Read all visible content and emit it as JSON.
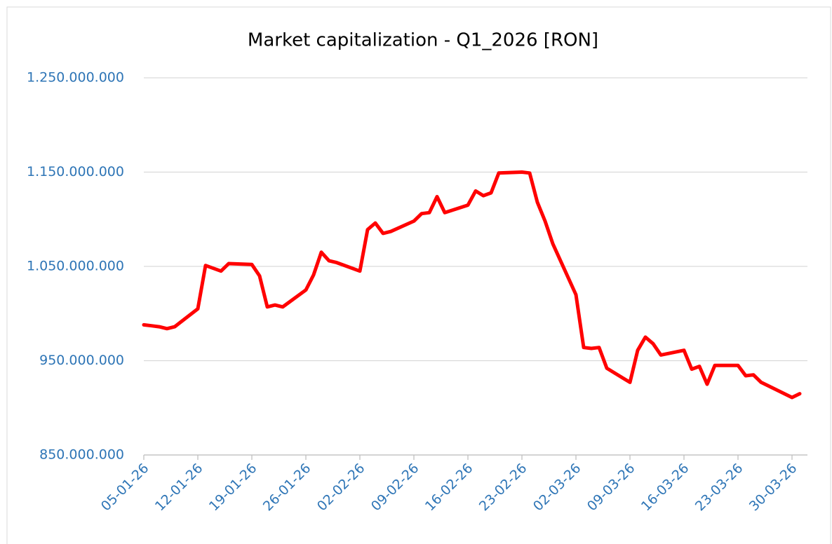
{
  "chart_data": {
    "type": "line",
    "title": "Market capitalization - Q1_2026 [RON]",
    "x": [
      "05-01-26",
      "06-01-26",
      "07-01-26",
      "08-01-26",
      "09-01-26",
      "12-01-26",
      "13-01-26",
      "14-01-26",
      "15-01-26",
      "16-01-26",
      "19-01-26",
      "20-01-26",
      "21-01-26",
      "22-01-26",
      "23-01-26",
      "26-01-26",
      "27-01-26",
      "28-01-26",
      "29-01-26",
      "30-01-26",
      "02-02-26",
      "03-02-26",
      "04-02-26",
      "05-02-26",
      "06-02-26",
      "09-02-26",
      "10-02-26",
      "11-02-26",
      "12-02-26",
      "13-02-26",
      "16-02-26",
      "17-02-26",
      "18-02-26",
      "19-02-26",
      "20-02-26",
      "23-02-26",
      "24-02-26",
      "25-02-26",
      "26-02-26",
      "27-02-26",
      "02-03-26",
      "03-03-26",
      "04-03-26",
      "05-03-26",
      "06-03-26",
      "09-03-26",
      "10-03-26",
      "11-03-26",
      "12-03-26",
      "13-03-26",
      "16-03-26",
      "17-03-26",
      "18-03-26",
      "19-03-26",
      "20-03-26",
      "23-03-26",
      "24-03-26",
      "25-03-26",
      "26-03-26",
      "27-03-26",
      "30-03-26",
      "31-03-26"
    ],
    "series": [
      {
        "name": "Market capitalization",
        "color": "#ff0000",
        "values": [
          988000000,
          987000000,
          986000000,
          984000000,
          986000000,
          1005000000,
          1051000000,
          1048000000,
          1045000000,
          1053000000,
          1052000000,
          1040000000,
          1007000000,
          1009000000,
          1007000000,
          1025000000,
          1041000000,
          1065000000,
          1056000000,
          1054000000,
          1045000000,
          1089000000,
          1096000000,
          1085000000,
          1087000000,
          1098000000,
          1106000000,
          1107000000,
          1124000000,
          1107000000,
          1115000000,
          1130000000,
          1125000000,
          1128000000,
          1149000000,
          1150000000,
          1149000000,
          1118000000,
          1098000000,
          1074000000,
          1020000000,
          964000000,
          963000000,
          964000000,
          942000000,
          927000000,
          961000000,
          975000000,
          968000000,
          956000000,
          961000000,
          941000000,
          944000000,
          925000000,
          945000000,
          945000000,
          934000000,
          935000000,
          927000000,
          923000000,
          911000000,
          915000000
        ]
      }
    ],
    "xlim": [
      "05-01-26",
      "01-04-26"
    ],
    "xticks": [
      "05-01-26",
      "12-01-26",
      "19-01-26",
      "26-01-26",
      "02-02-26",
      "09-02-26",
      "16-02-26",
      "23-02-26",
      "02-03-26",
      "09-03-26",
      "16-03-26",
      "23-03-26",
      "30-03-26"
    ],
    "ylim": [
      850000000,
      1250000000
    ],
    "yticks": [
      {
        "value": 850000000,
        "label": "850.000.000"
      },
      {
        "value": 950000000,
        "label": "950.000.000"
      },
      {
        "value": 1050000000,
        "label": "1.050.000.000"
      },
      {
        "value": 1150000000,
        "label": "1.150.000.000"
      },
      {
        "value": 1250000000,
        "label": "1.250.000.000"
      }
    ],
    "grid": true
  }
}
